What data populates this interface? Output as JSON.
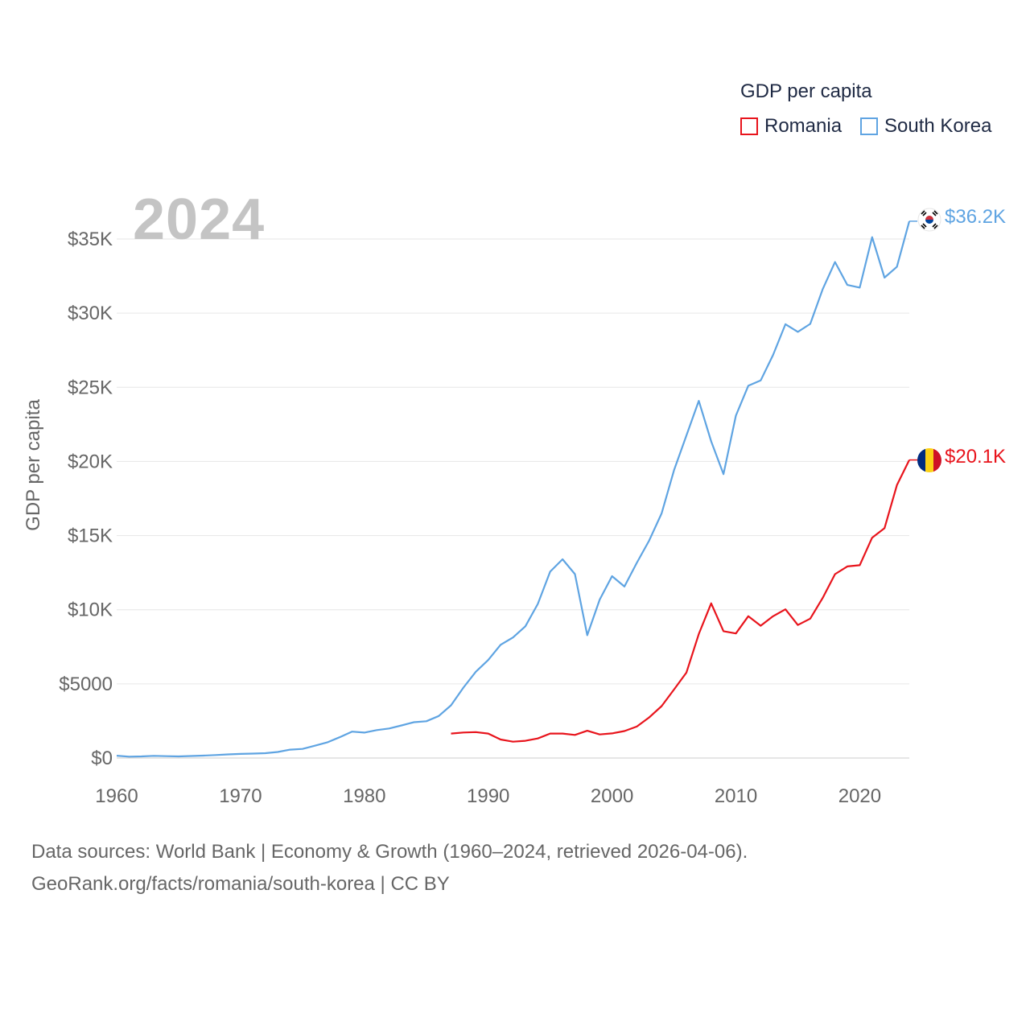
{
  "legend": {
    "title": "GDP per capita",
    "items": [
      {
        "label": "Romania",
        "color": "#e8141c"
      },
      {
        "label": "South Korea",
        "color": "#5fa4e2"
      }
    ]
  },
  "year_label": "2024",
  "y_axis_title": "GDP per capita",
  "end_values": {
    "south_korea": "$36.2K",
    "romania": "$20.1K"
  },
  "flags": {
    "south_korea": "south-korea-flag-icon",
    "romania": "romania-flag-icon"
  },
  "footer": {
    "line1": "Data sources: World Bank | Economy & Growth (1960–2024, retrieved 2026-04-06).",
    "line2": "GeoRank.org/facts/romania/south-korea | CC BY"
  },
  "colors": {
    "romania": "#e8141c",
    "south_korea": "#5fa4e2",
    "grid": "#e6e6e6",
    "axis_text": "#666666"
  },
  "chart_data": {
    "type": "line",
    "title": "GDP per capita",
    "xlabel": "",
    "ylabel": "GDP per capita",
    "xlim": [
      1960,
      2024
    ],
    "ylim": [
      0,
      35000
    ],
    "x_ticks": [
      1960,
      1970,
      1980,
      1990,
      2000,
      2010,
      2020
    ],
    "y_ticks": [
      0,
      5000,
      10000,
      15000,
      20000,
      25000,
      30000,
      35000
    ],
    "y_tick_labels": [
      "$0",
      "$5000",
      "$10K",
      "$15K",
      "$20K",
      "$25K",
      "$30K",
      "$35K"
    ],
    "grid": true,
    "legend_position": "top-right",
    "series": [
      {
        "name": "South Korea",
        "color": "#5fa4e2",
        "x": [
          1960,
          1961,
          1962,
          1963,
          1964,
          1965,
          1966,
          1967,
          1968,
          1969,
          1970,
          1971,
          1972,
          1973,
          1974,
          1975,
          1976,
          1977,
          1978,
          1979,
          1980,
          1981,
          1982,
          1983,
          1984,
          1985,
          1986,
          1987,
          1988,
          1989,
          1990,
          1991,
          1992,
          1993,
          1994,
          1995,
          1996,
          1997,
          1998,
          1999,
          2000,
          2001,
          2002,
          2003,
          2004,
          2005,
          2006,
          2007,
          2008,
          2009,
          2010,
          2011,
          2012,
          2013,
          2014,
          2015,
          2016,
          2017,
          2018,
          2019,
          2020,
          2021,
          2022,
          2023,
          2024
        ],
        "values": [
          158,
          93,
          106,
          146,
          124,
          108,
          133,
          161,
          199,
          243,
          279,
          300,
          325,
          406,
          563,
          615,
          830,
          1055,
          1400,
          1780,
          1715,
          1883,
          1992,
          2198,
          2413,
          2482,
          2835,
          3555,
          4749,
          5817,
          6610,
          7637,
          8127,
          8885,
          10385,
          12565,
          13403,
          12398,
          8282,
          10672,
          12263,
          11561,
          13165,
          14673,
          16497,
          19403,
          21743,
          24086,
          21350,
          19144,
          23087,
          25100,
          25459,
          27180,
          29253,
          28737,
          29274,
          31601,
          33447,
          31902,
          31721,
          35126,
          32395,
          33121,
          36200
        ]
      },
      {
        "name": "Romania",
        "color": "#e8141c",
        "x": [
          1987,
          1988,
          1989,
          1990,
          1991,
          1992,
          1993,
          1994,
          1995,
          1996,
          1997,
          1998,
          1999,
          2000,
          2001,
          2002,
          2003,
          2004,
          2005,
          2006,
          2007,
          2008,
          2009,
          2010,
          2011,
          2012,
          2013,
          2014,
          2015,
          2016,
          2017,
          2018,
          2019,
          2020,
          2021,
          2022,
          2023,
          2024
        ],
        "values": [
          1650,
          1720,
          1750,
          1650,
          1250,
          1100,
          1160,
          1320,
          1650,
          1650,
          1560,
          1840,
          1590,
          1660,
          1820,
          2120,
          2740,
          3500,
          4620,
          5760,
          8360,
          10430,
          8550,
          8400,
          9560,
          8920,
          9560,
          10030,
          8970,
          9400,
          10790,
          12400,
          12920,
          13000,
          14860,
          15500,
          18400,
          20100
        ]
      }
    ]
  }
}
